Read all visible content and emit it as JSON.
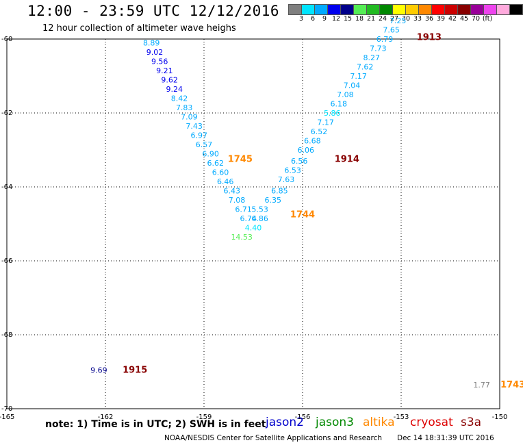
{
  "header": {
    "title": "12:00 - 23:59 UTC 12/12/2016",
    "subtitle": "12 hour collection of altimeter wave heighs"
  },
  "colorbar": {
    "colors": [
      "#7f7f7f",
      "#00e5ff",
      "#00aaff",
      "#0000ee",
      "#00008b",
      "#55ee55",
      "#22bb22",
      "#008800",
      "#ffff00",
      "#ffcc00",
      "#ff8800",
      "#ff0000",
      "#cc0000",
      "#880000",
      "#990099",
      "#ee44ee",
      "#ffaadd",
      "#000000"
    ],
    "labels": [
      "3",
      "6",
      "9",
      "12",
      "15",
      "18",
      "21",
      "24",
      "27",
      "30",
      "33",
      "36",
      "39",
      "42",
      "45",
      "70",
      "(ft)"
    ]
  },
  "chart_data": {
    "type": "scatter",
    "xlim": [
      -165,
      -150
    ],
    "ylim": [
      -70,
      -60
    ],
    "x_ticks": [
      "-165",
      "-162",
      "-159",
      "-156",
      "-153",
      "-150"
    ],
    "y_ticks": [
      "-60",
      "-62",
      "-64",
      "-66",
      "-68",
      "-70"
    ],
    "grid": true,
    "points": [
      {
        "x": -160.6,
        "y": -60.1,
        "v": "8.89",
        "c": "#00aaff"
      },
      {
        "x": -160.5,
        "y": -60.35,
        "v": "9.02",
        "c": "#0000ee"
      },
      {
        "x": -160.35,
        "y": -60.6,
        "v": "9.56",
        "c": "#0000ee"
      },
      {
        "x": -160.2,
        "y": -60.85,
        "v": "9.21",
        "c": "#0000ee"
      },
      {
        "x": -160.05,
        "y": -61.1,
        "v": "9.62",
        "c": "#0000ee"
      },
      {
        "x": -159.9,
        "y": -61.35,
        "v": "9.24",
        "c": "#0000ee"
      },
      {
        "x": -159.75,
        "y": -61.6,
        "v": "8.42",
        "c": "#00aaff"
      },
      {
        "x": -159.6,
        "y": -61.85,
        "v": "7.83",
        "c": "#00aaff"
      },
      {
        "x": -159.45,
        "y": -62.1,
        "v": "7.09",
        "c": "#00aaff"
      },
      {
        "x": -159.3,
        "y": -62.35,
        "v": "7.43",
        "c": "#00aaff"
      },
      {
        "x": -159.15,
        "y": -62.6,
        "v": "6.97",
        "c": "#00aaff"
      },
      {
        "x": -159.0,
        "y": -62.85,
        "v": "6.57",
        "c": "#00aaff"
      },
      {
        "x": -158.8,
        "y": -63.1,
        "v": "6.90",
        "c": "#00aaff"
      },
      {
        "x": -158.65,
        "y": -63.35,
        "v": "6.62",
        "c": "#00aaff"
      },
      {
        "x": -158.5,
        "y": -63.6,
        "v": "6.60",
        "c": "#00aaff"
      },
      {
        "x": -158.35,
        "y": -63.85,
        "v": "6.46",
        "c": "#00aaff"
      },
      {
        "x": -158.15,
        "y": -64.1,
        "v": "6.43",
        "c": "#00aaff"
      },
      {
        "x": -158.0,
        "y": -64.35,
        "v": "7.08",
        "c": "#00aaff"
      },
      {
        "x": -157.8,
        "y": -64.6,
        "v": "6.71",
        "c": "#00aaff"
      },
      {
        "x": -157.65,
        "y": -64.85,
        "v": "6.74",
        "c": "#00aaff"
      },
      {
        "x": -157.5,
        "y": -65.1,
        "v": "4.40",
        "c": "#00e5ff"
      },
      {
        "x": -157.85,
        "y": -65.35,
        "v": "14.53",
        "c": "#55ee55"
      },
      {
        "x": -157.3,
        "y": -64.85,
        "v": "6.86",
        "c": "#00aaff"
      },
      {
        "x": -157.3,
        "y": -64.6,
        "v": "5.53",
        "c": "#00aaff"
      },
      {
        "x": -156.9,
        "y": -64.35,
        "v": "6.35",
        "c": "#00aaff"
      },
      {
        "x": -156.7,
        "y": -64.1,
        "v": "6.85",
        "c": "#00aaff"
      },
      {
        "x": -156.5,
        "y": -63.8,
        "v": "7.63",
        "c": "#00aaff"
      },
      {
        "x": -156.3,
        "y": -63.55,
        "v": "6.53",
        "c": "#00aaff"
      },
      {
        "x": -156.1,
        "y": -63.3,
        "v": "6.56",
        "c": "#00aaff"
      },
      {
        "x": -155.9,
        "y": -63.0,
        "v": "6.06",
        "c": "#00aaff"
      },
      {
        "x": -155.7,
        "y": -62.75,
        "v": "6.68",
        "c": "#00aaff"
      },
      {
        "x": -155.5,
        "y": -62.5,
        "v": "6.52",
        "c": "#00aaff"
      },
      {
        "x": -155.3,
        "y": -62.25,
        "v": "7.17",
        "c": "#00aaff"
      },
      {
        "x": -155.1,
        "y": -62.0,
        "v": "5.86",
        "c": "#00e5ff"
      },
      {
        "x": -154.9,
        "y": -61.75,
        "v": "6.18",
        "c": "#00aaff"
      },
      {
        "x": -154.7,
        "y": -61.5,
        "v": "7.08",
        "c": "#00aaff"
      },
      {
        "x": -154.5,
        "y": -61.25,
        "v": "7.04",
        "c": "#00aaff"
      },
      {
        "x": -154.3,
        "y": -61.0,
        "v": "7.17",
        "c": "#00aaff"
      },
      {
        "x": -154.1,
        "y": -60.75,
        "v": "7.62",
        "c": "#00aaff"
      },
      {
        "x": -153.9,
        "y": -60.5,
        "v": "8.27",
        "c": "#00aaff"
      },
      {
        "x": -153.7,
        "y": -60.25,
        "v": "7.73",
        "c": "#00aaff"
      },
      {
        "x": -153.5,
        "y": -60.0,
        "v": "6.79",
        "c": "#00aaff"
      },
      {
        "x": -153.3,
        "y": -59.75,
        "v": "7.65",
        "c": "#00aaff"
      },
      {
        "x": -153.1,
        "y": -59.5,
        "v": "7.25",
        "c": "#00aaff"
      },
      {
        "x": -162.2,
        "y": -68.95,
        "v": "9.69",
        "c": "#00008b"
      },
      {
        "x": -150.55,
        "y": -69.35,
        "v": "1.77",
        "c": "#7f7f7f"
      }
    ],
    "track_labels": [
      {
        "x": -152.15,
        "y": -59.95,
        "v": "1913",
        "c": "#880000"
      },
      {
        "x": -154.65,
        "y": -63.25,
        "v": "1914",
        "c": "#880000"
      },
      {
        "x": -161.1,
        "y": -68.95,
        "v": "1915",
        "c": "#880000"
      },
      {
        "x": -157.9,
        "y": -63.25,
        "v": "1745",
        "c": "#ff8800"
      },
      {
        "x": -156.0,
        "y": -64.75,
        "v": "1744",
        "c": "#ff8800"
      },
      {
        "x": -149.6,
        "y": -69.35,
        "v": "1743",
        "c": "#ff8800"
      }
    ]
  },
  "footer": {
    "note": "note: 1) Time is in UTC; 2) SWH is in feet",
    "satellites": [
      {
        "name": "jason2",
        "color": "#0000cc"
      },
      {
        "name": "jason3",
        "color": "#008800"
      },
      {
        "name": "altika",
        "color": "#ff8800"
      },
      {
        "name": "cryosat",
        "color": "#dd0000"
      },
      {
        "name": "s3a",
        "color": "#880000"
      }
    ],
    "credit": "NOAA/NESDIS Center for Satellite Applications and Research",
    "timestamp": "Dec 14 18:31:39 UTC 2016"
  }
}
